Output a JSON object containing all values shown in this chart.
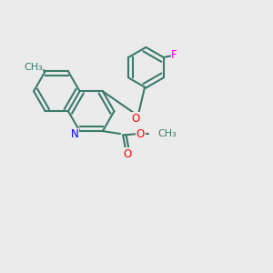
{
  "bg_color": "#ebebeb",
  "bond_color": "#3a7a6a",
  "bond_width": 1.5,
  "atom_colors": {
    "N": "#0000ff",
    "O": "#ff0000",
    "F": "#ff00ff",
    "C": "#3a7a6a"
  },
  "font_size": 8.5
}
